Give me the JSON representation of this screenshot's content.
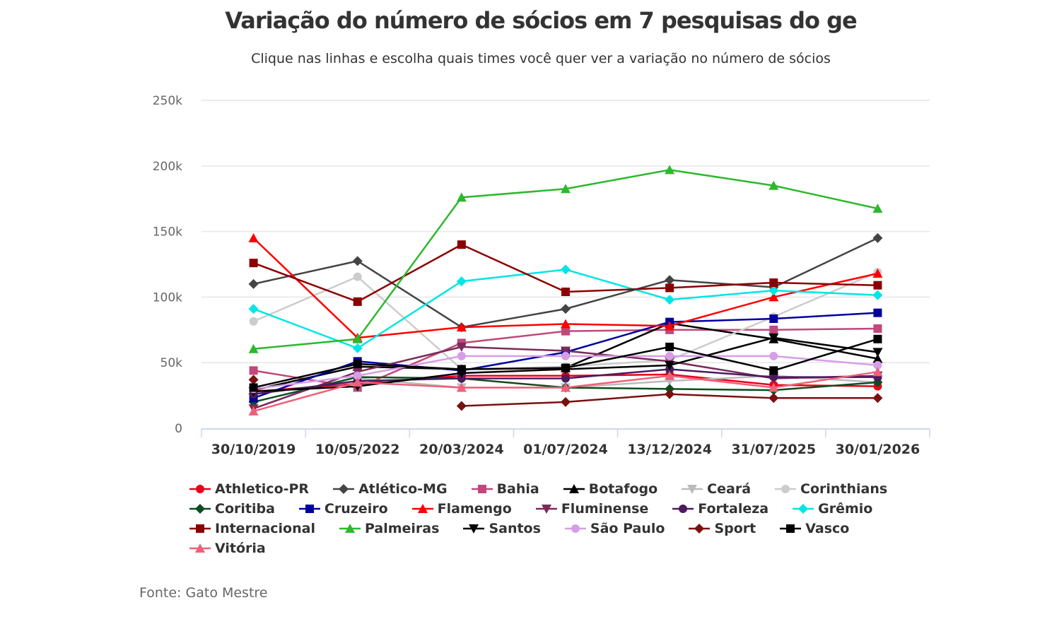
{
  "chart_data": {
    "type": "line",
    "title": "Variação do número de sócios em 7 pesquisas do ge",
    "subtitle": "Clique nas linhas e escolha quais times você quer ver a variação no número de sócios",
    "source": "Fonte: Gato Mestre",
    "xlabel": "",
    "ylabel": "",
    "ylim": [
      0,
      250000
    ],
    "yticks": [
      0,
      50000,
      100000,
      150000,
      200000,
      250000
    ],
    "ytick_labels": [
      "0",
      "50k",
      "100k",
      "150k",
      "200k",
      "250k"
    ],
    "grid": true,
    "legend_position": "bottom",
    "categories": [
      "30/10/2019",
      "10/05/2022",
      "20/03/2024",
      "01/07/2024",
      "13/12/2024",
      "31/07/2025",
      "30/01/2026"
    ],
    "series": [
      {
        "name": "Athletico-PR",
        "color": "#e8001c",
        "marker": "circle",
        "values": [
          28000,
          34000,
          40000,
          40000,
          41000,
          33000,
          32000
        ]
      },
      {
        "name": "Atlético-MG",
        "color": "#444444",
        "marker": "diamond",
        "values": [
          110000,
          127500,
          77000,
          91000,
          113000,
          107500,
          145000
        ]
      },
      {
        "name": "Bahia",
        "color": "#c0487a",
        "marker": "square",
        "values": [
          44000,
          31000,
          65000,
          74000,
          75000,
          75000,
          76000
        ]
      },
      {
        "name": "Botafogo",
        "color": "#000000",
        "marker": "triangle",
        "values": [
          29000,
          47000,
          45000,
          46000,
          80000,
          68000,
          53000
        ]
      },
      {
        "name": "Ceará",
        "color": "#bbbbbb",
        "marker": "triangle-down",
        "values": [
          null,
          38000,
          31000,
          31000,
          36000,
          40000,
          35000
        ]
      },
      {
        "name": "Corinthians",
        "color": "#cccccc",
        "marker": "circle",
        "values": [
          81500,
          115500,
          45000,
          47000,
          52000,
          85000,
          119000
        ]
      },
      {
        "name": "Coritiba",
        "color": "#0b4d1e",
        "marker": "diamond",
        "values": [
          20000,
          39000,
          38000,
          31000,
          30000,
          29000,
          35000
        ]
      },
      {
        "name": "Cruzeiro",
        "color": "#0000a0",
        "marker": "square",
        "values": [
          23000,
          51000,
          44000,
          58000,
          81000,
          83500,
          88000
        ]
      },
      {
        "name": "Flamengo",
        "color": "#ff0000",
        "marker": "triangle",
        "values": [
          145000,
          69000,
          77000,
          79500,
          78000,
          100000,
          118000
        ]
      },
      {
        "name": "Fluminense",
        "color": "#7b2a5a",
        "marker": "triangle-down",
        "values": [
          15000,
          43000,
          62000,
          59000,
          51000,
          38000,
          40000
        ]
      },
      {
        "name": "Fortaleza",
        "color": "#4b1b5e",
        "marker": "circle",
        "values": [
          26000,
          36000,
          38000,
          38000,
          45000,
          39000,
          39000
        ]
      },
      {
        "name": "Grêmio",
        "color": "#00e5e5",
        "marker": "diamond",
        "values": [
          91000,
          61000,
          112000,
          121000,
          98000,
          105000,
          101500
        ]
      },
      {
        "name": "Internacional",
        "color": "#8b0000",
        "marker": "square",
        "values": [
          126000,
          96500,
          140000,
          104000,
          107000,
          111000,
          109000
        ]
      },
      {
        "name": "Palmeiras",
        "color": "#2db82d",
        "marker": "triangle",
        "values": [
          60500,
          68000,
          176000,
          182500,
          197000,
          185000,
          167500
        ]
      },
      {
        "name": "Santos",
        "color": "#000000",
        "marker": "triangle-down",
        "values": [
          28000,
          32000,
          42000,
          45000,
          48000,
          69000,
          58000
        ]
      },
      {
        "name": "São Paulo",
        "color": "#d79ee8",
        "marker": "circle",
        "values": [
          30000,
          40000,
          55000,
          55000,
          55000,
          55000,
          48000
        ]
      },
      {
        "name": "Sport",
        "color": "#7a1010",
        "marker": "diamond",
        "values": [
          37000,
          null,
          17000,
          20000,
          26000,
          23000,
          23000
        ]
      },
      {
        "name": "Vasco",
        "color": "#000000",
        "marker": "square",
        "values": [
          31000,
          49000,
          45000,
          46000,
          62000,
          44000,
          68000
        ]
      },
      {
        "name": "Vitória",
        "color": "#f0607a",
        "marker": "triangle",
        "values": [
          13000,
          35000,
          31000,
          31000,
          40000,
          31000,
          43000
        ]
      }
    ]
  }
}
